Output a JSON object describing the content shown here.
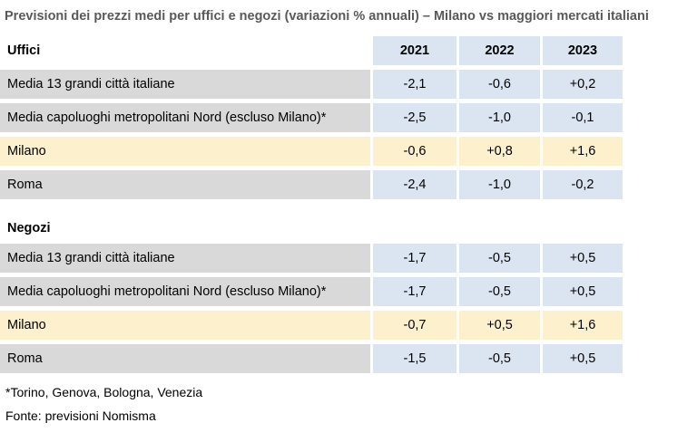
{
  "title": "Previsioni dei prezzi medi per uffici e negozi (variazioni % annuali) – Milano vs maggiori mercati italiani",
  "columns": [
    "2021",
    "2022",
    "2023"
  ],
  "sections": [
    {
      "id": "uffici",
      "label": "Uffici",
      "show_year_header": true,
      "rows": [
        {
          "label": "Media 13 grandi città italiane",
          "values": [
            "-2,1",
            "-0,6",
            "+0,2"
          ],
          "highlight": false
        },
        {
          "label": "Media capoluoghi metropolitani Nord (escluso Milano)*",
          "values": [
            "-2,5",
            "-1,0",
            "-0,1"
          ],
          "highlight": false
        },
        {
          "label": "Milano",
          "values": [
            "-0,6",
            "+0,8",
            "+1,6"
          ],
          "highlight": true
        },
        {
          "label": "Roma",
          "values": [
            "-2,4",
            "-1,0",
            "-0,2"
          ],
          "highlight": false
        }
      ]
    },
    {
      "id": "negozi",
      "label": "Negozi",
      "show_year_header": false,
      "rows": [
        {
          "label": "Media 13 grandi città italiane",
          "values": [
            "-1,7",
            "-0,5",
            "+0,5"
          ],
          "highlight": false
        },
        {
          "label": "Media capoluoghi metropolitani Nord (escluso Milano)*",
          "values": [
            "-1,7",
            "-0,5",
            "+0,5"
          ],
          "highlight": false
        },
        {
          "label": "Milano",
          "values": [
            "-0,7",
            "+0,5",
            "+1,6"
          ],
          "highlight": true
        },
        {
          "label": "Roma",
          "values": [
            "-1,5",
            "-0,5",
            "+0,5"
          ],
          "highlight": false
        }
      ]
    }
  ],
  "footnote": "*Torino, Genova, Bologna, Venezia",
  "source": "Fonte: previsioni Nomisma",
  "colors": {
    "title_text": "#595959",
    "label_fill": "#d9d9d9",
    "value_fill": "#dbe5f1",
    "header_fill": "#dbe5f1",
    "highlight_fill": "#fdf0cc",
    "body_text": "#000000"
  },
  "chart_data": {
    "type": "table",
    "title": "Previsioni dei prezzi medi per uffici e negozi (variazioni % annuali) – Milano vs maggiori mercati italiani",
    "columns": [
      "2021",
      "2022",
      "2023"
    ],
    "sections": [
      {
        "name": "Uffici",
        "rows": [
          {
            "label": "Media 13 grandi città italiane",
            "values": [
              -2.1,
              -0.6,
              0.2
            ]
          },
          {
            "label": "Media capoluoghi metropolitani Nord (escluso Milano)*",
            "values": [
              -2.5,
              -1.0,
              -0.1
            ]
          },
          {
            "label": "Milano",
            "values": [
              -0.6,
              0.8,
              1.6
            ],
            "highlighted": true
          },
          {
            "label": "Roma",
            "values": [
              -2.4,
              -1.0,
              -0.2
            ]
          }
        ]
      },
      {
        "name": "Negozi",
        "rows": [
          {
            "label": "Media 13 grandi città italiane",
            "values": [
              -1.7,
              -0.5,
              0.5
            ]
          },
          {
            "label": "Media capoluoghi metropolitani Nord (escluso Milano)*",
            "values": [
              -1.7,
              -0.5,
              0.5
            ]
          },
          {
            "label": "Milano",
            "values": [
              -0.7,
              0.5,
              1.6
            ],
            "highlighted": true
          },
          {
            "label": "Roma",
            "values": [
              -1.5,
              -0.5,
              0.5
            ]
          }
        ]
      }
    ],
    "footnote": "*Torino, Genova, Bologna, Venezia",
    "source": "Fonte: previsioni Nomisma",
    "units": "% annual variation"
  }
}
